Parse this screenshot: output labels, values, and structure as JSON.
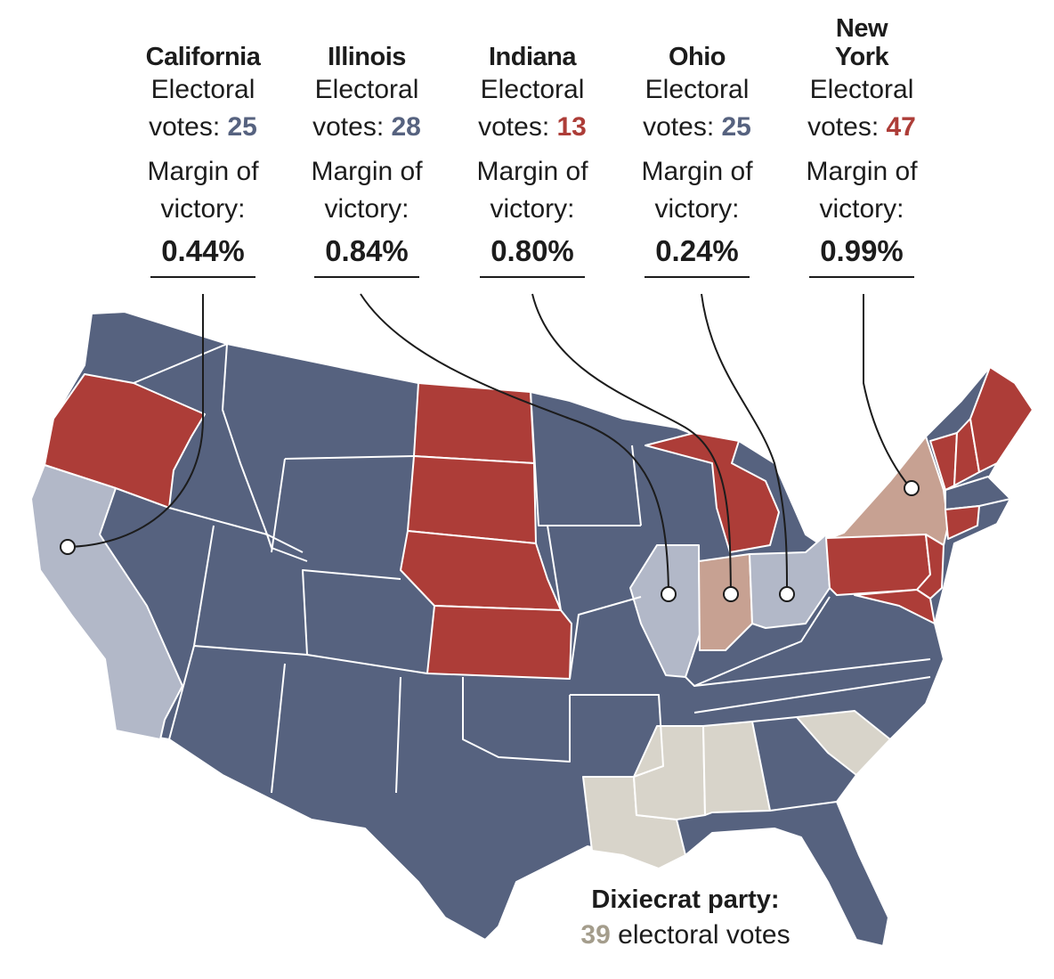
{
  "colors": {
    "dewey": "#56627f",
    "truman": "#ad3d38",
    "dewey_close": "#b2b8c8",
    "truman_close": "#c7a192",
    "dixiecrat": "#d8d4ca",
    "dixiecrat_text": "#a49d8c",
    "border": "#ffffff",
    "leader": "#1c1c1c"
  },
  "callouts": [
    {
      "state": "California",
      "ev_label": "Electoral",
      "votes_label": "votes:",
      "votes": "25",
      "party": "dewey",
      "margin_label_1": "Margin of",
      "margin_label_2": "victory:",
      "margin": "0.44%"
    },
    {
      "state": "Illinois",
      "ev_label": "Electoral",
      "votes_label": "votes:",
      "votes": "28",
      "party": "dewey",
      "margin_label_1": "Margin of",
      "margin_label_2": "victory:",
      "margin": "0.84%"
    },
    {
      "state": "Indiana",
      "ev_label": "Electoral",
      "votes_label": "votes:",
      "votes": "13",
      "party": "truman",
      "margin_label_1": "Margin of",
      "margin_label_2": "victory:",
      "margin": "0.80%"
    },
    {
      "state": "Ohio",
      "ev_label": "Electoral",
      "votes_label": "votes:",
      "votes": "25",
      "party": "dewey",
      "margin_label_1": "Margin of",
      "margin_label_2": "victory:",
      "margin": "0.24%"
    },
    {
      "state": "New York",
      "ev_label": "Electoral",
      "votes_label": "votes:",
      "votes": "47",
      "party": "truman",
      "margin_label_1": "Margin of",
      "margin_label_2": "victory:",
      "margin": "0.99%"
    }
  ],
  "dixiecrat_note": {
    "title": "Dixiecrat party:",
    "votes": "39",
    "suffix": "electoral votes"
  }
}
